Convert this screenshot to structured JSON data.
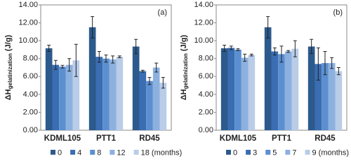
{
  "chart_data": [
    {
      "type": "bar",
      "annotation": "(a)",
      "y_label": {
        "symbol": "ΔH",
        "subscript": "gelatinization",
        "unit": " (J/g)"
      },
      "categories": [
        "KDML105",
        "PTT1",
        "RD45"
      ],
      "ylim": [
        0,
        14
      ],
      "yticks": [
        {
          "value": 0,
          "label": "0.00"
        },
        {
          "value": 2,
          "label": "2.00"
        },
        {
          "value": 4,
          "label": "4.00"
        },
        {
          "value": 6,
          "label": "6.00"
        },
        {
          "value": 8,
          "label": "8.00"
        },
        {
          "value": 10,
          "label": "10.00"
        },
        {
          "value": 12,
          "label": "12.00"
        },
        {
          "value": 14,
          "label": "14.00"
        }
      ],
      "grid": false,
      "series": [
        {
          "name": "0",
          "color": "#2c5a8c",
          "values": [
            9.15,
            11.5,
            9.35
          ],
          "errors": [
            0.35,
            1.2,
            0.8
          ]
        },
        {
          "name": "4",
          "color": "#3a6db2",
          "values": [
            7.3,
            8.2,
            6.6
          ],
          "errors": [
            0.5,
            0.6,
            0.1
          ]
        },
        {
          "name": "8",
          "color": "#5b8fd0",
          "values": [
            7.1,
            8.0,
            5.5
          ],
          "errors": [
            0.15,
            0.4,
            0.4
          ]
        },
        {
          "name": "12",
          "color": "#8db1df",
          "values": [
            7.3,
            7.9,
            7.0
          ],
          "errors": [
            0.7,
            0.4,
            0.5
          ]
        },
        {
          "name": "18 (months)",
          "color": "#b9cce8",
          "values": [
            7.8,
            8.2,
            5.3
          ],
          "errors": [
            1.8,
            0.1,
            0.6
          ]
        }
      ]
    },
    {
      "type": "bar",
      "annotation": "(b)",
      "y_label": {
        "symbol": "ΔH",
        "subscript": "gelatinization",
        "unit": " (J/g)"
      },
      "categories": [
        "KDML105",
        "PTT1",
        "RD45"
      ],
      "ylim": [
        0,
        14
      ],
      "yticks": [
        {
          "value": 0,
          "label": "0.00"
        },
        {
          "value": 2,
          "label": "2.00"
        },
        {
          "value": 4,
          "label": "4.00"
        },
        {
          "value": 6,
          "label": "6.00"
        },
        {
          "value": 8,
          "label": "8.00"
        },
        {
          "value": 10,
          "label": "10.00"
        },
        {
          "value": 12,
          "label": "12.00"
        },
        {
          "value": 14,
          "label": "14.00"
        }
      ],
      "grid": false,
      "series": [
        {
          "name": "0",
          "color": "#2c5a8c",
          "values": [
            9.15,
            11.5,
            9.35
          ],
          "errors": [
            0.35,
            1.2,
            0.8
          ]
        },
        {
          "name": "3",
          "color": "#3a6db2",
          "values": [
            9.2,
            8.8,
            7.4
          ],
          "errors": [
            0.2,
            0.4,
            1.8
          ]
        },
        {
          "name": "5",
          "color": "#5b8fd0",
          "values": [
            9.0,
            8.5,
            7.5
          ],
          "errors": [
            0.1,
            0.9,
            1.3
          ]
        },
        {
          "name": "7",
          "color": "#8db1df",
          "values": [
            8.1,
            8.8,
            7.5
          ],
          "errors": [
            0.4,
            0.1,
            0.6
          ]
        },
        {
          "name": "9 (months)",
          "color": "#b9cce8",
          "values": [
            8.4,
            9.1,
            6.6
          ],
          "errors": [
            0.1,
            0.9,
            0.4
          ]
        }
      ]
    }
  ]
}
